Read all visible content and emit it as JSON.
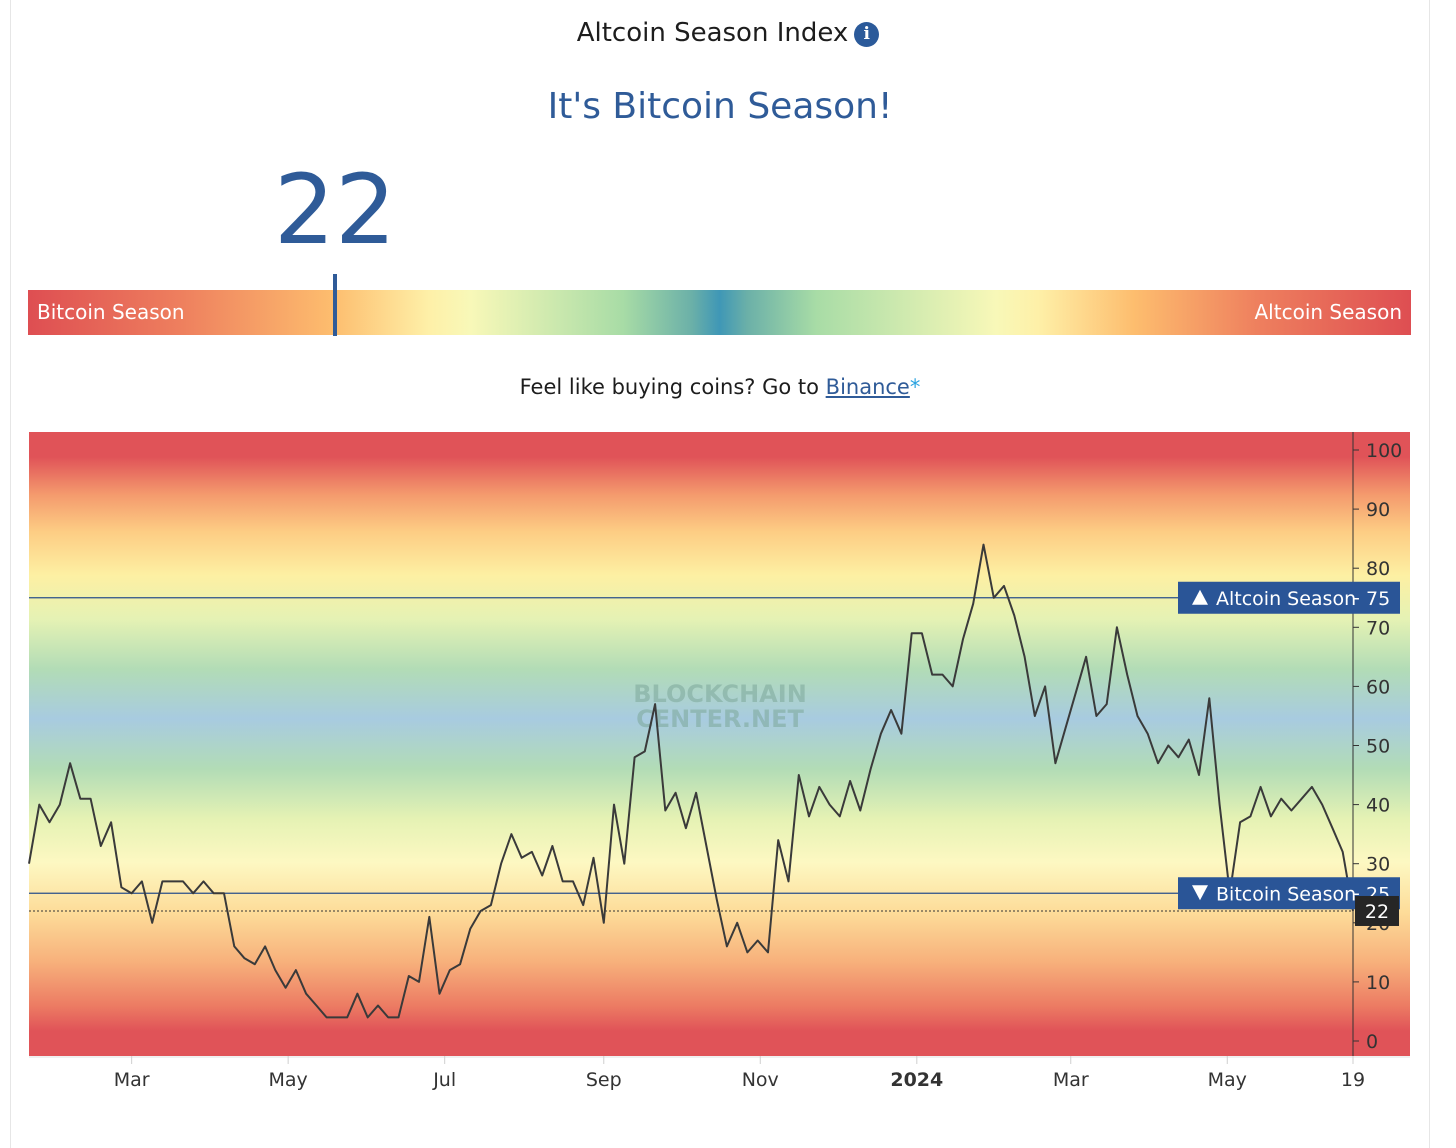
{
  "header": {
    "title": "Altcoin Season Index",
    "info_icon": "info-icon",
    "season_heading": "It's Bitcoin Season!"
  },
  "gauge": {
    "value": "22",
    "value_num": 22,
    "left_label": "Bitcoin Season",
    "right_label": "Altcoin Season"
  },
  "promo": {
    "prefix": "Feel like buying coins? Go to ",
    "link": "Binance",
    "asterisk": "*"
  },
  "chart_data": {
    "type": "line",
    "ylim": [
      0,
      100
    ],
    "y_ticks": [
      "0",
      "10",
      "20",
      "30",
      "40",
      "50",
      "60",
      "70",
      "80",
      "90",
      "100"
    ],
    "x_range": [
      "2023-01-20",
      "2024-06-19"
    ],
    "x_ticks": [
      {
        "label": "Mar",
        "date": "2023-03-01",
        "bold": false
      },
      {
        "label": "May",
        "date": "2023-05-01",
        "bold": false
      },
      {
        "label": "Jul",
        "date": "2023-07-01",
        "bold": false
      },
      {
        "label": "Sep",
        "date": "2023-09-01",
        "bold": false
      },
      {
        "label": "Nov",
        "date": "2023-11-01",
        "bold": false
      },
      {
        "label": "2024",
        "date": "2024-01-01",
        "bold": true
      },
      {
        "label": "Mar",
        "date": "2024-03-01",
        "bold": false
      },
      {
        "label": "May",
        "date": "2024-05-01",
        "bold": false
      },
      {
        "label": "19",
        "date": "2024-06-19",
        "bold": false
      }
    ],
    "thresholds": [
      {
        "label": "Altcoin Season",
        "value": "75",
        "value_num": 75,
        "direction": "up"
      },
      {
        "label": "Bitcoin Season",
        "value": "25",
        "value_num": 25,
        "direction": "down"
      }
    ],
    "current": {
      "value": "22",
      "value_num": 22
    },
    "watermark": [
      "BLOCKCHAIN",
      "CENTER.NET"
    ],
    "series": [
      {
        "x": [
          "2023-01-20",
          "2023-01-24",
          "2023-01-28",
          "2023-02-01",
          "2023-02-05",
          "2023-02-09",
          "2023-02-13",
          "2023-02-17",
          "2023-02-21",
          "2023-02-25",
          "2023-03-01",
          "2023-03-05",
          "2023-03-09",
          "2023-03-13",
          "2023-03-17",
          "2023-03-21",
          "2023-03-25",
          "2023-03-29",
          "2023-04-02",
          "2023-04-06",
          "2023-04-10",
          "2023-04-14",
          "2023-04-18",
          "2023-04-22",
          "2023-04-26",
          "2023-04-30",
          "2023-05-04",
          "2023-05-08",
          "2023-05-12",
          "2023-05-16",
          "2023-05-20",
          "2023-05-24",
          "2023-05-28",
          "2023-06-01",
          "2023-06-05",
          "2023-06-09",
          "2023-06-13",
          "2023-06-17",
          "2023-06-21",
          "2023-06-25",
          "2023-06-29",
          "2023-07-03",
          "2023-07-07",
          "2023-07-11",
          "2023-07-15",
          "2023-07-19",
          "2023-07-23",
          "2023-07-27",
          "2023-07-31",
          "2023-08-04",
          "2023-08-08",
          "2023-08-12",
          "2023-08-16",
          "2023-08-20",
          "2023-08-24",
          "2023-08-28",
          "2023-09-01",
          "2023-09-05",
          "2023-09-09",
          "2023-09-13",
          "2023-09-17",
          "2023-09-21",
          "2023-09-25",
          "2023-09-29",
          "2023-10-03",
          "2023-10-07",
          "2023-10-11",
          "2023-10-15",
          "2023-10-19",
          "2023-10-23",
          "2023-10-27",
          "2023-10-31",
          "2023-11-04",
          "2023-11-08",
          "2023-11-12",
          "2023-11-16",
          "2023-11-20",
          "2023-11-24",
          "2023-11-28",
          "2023-12-02",
          "2023-12-06",
          "2023-12-10",
          "2023-12-14",
          "2023-12-18",
          "2023-12-22",
          "2023-12-26",
          "2023-12-30",
          "2024-01-03",
          "2024-01-07",
          "2024-01-11",
          "2024-01-15",
          "2024-01-19",
          "2024-01-23",
          "2024-01-27",
          "2024-01-31",
          "2024-02-04",
          "2024-02-08",
          "2024-02-12",
          "2024-02-16",
          "2024-02-20",
          "2024-02-24",
          "2024-02-28",
          "2024-03-03",
          "2024-03-07",
          "2024-03-11",
          "2024-03-15",
          "2024-03-19",
          "2024-03-23",
          "2024-03-27",
          "2024-03-31",
          "2024-04-04",
          "2024-04-08",
          "2024-04-12",
          "2024-04-16",
          "2024-04-20",
          "2024-04-24",
          "2024-04-28",
          "2024-05-02",
          "2024-05-06",
          "2024-05-10",
          "2024-05-14",
          "2024-05-18",
          "2024-05-22",
          "2024-05-26",
          "2024-05-30",
          "2024-06-03",
          "2024-06-07",
          "2024-06-11",
          "2024-06-15",
          "2024-06-19"
        ],
        "y": [
          30,
          40,
          37,
          40,
          47,
          41,
          41,
          33,
          37,
          26,
          25,
          27,
          20,
          27,
          27,
          27,
          25,
          27,
          25,
          25,
          16,
          14,
          13,
          16,
          12,
          9,
          12,
          8,
          6,
          4,
          4,
          4,
          8,
          4,
          6,
          4,
          4,
          11,
          10,
          21,
          8,
          12,
          13,
          19,
          22,
          23,
          30,
          35,
          31,
          32,
          28,
          33,
          27,
          27,
          23,
          31,
          20,
          40,
          30,
          48,
          49,
          57,
          39,
          42,
          36,
          42,
          33,
          24,
          16,
          20,
          15,
          17,
          15,
          34,
          27,
          45,
          38,
          43,
          40,
          38,
          44,
          39,
          46,
          52,
          56,
          52,
          69,
          69,
          62,
          62,
          60,
          68,
          74,
          84,
          75,
          77,
          72,
          65,
          55,
          60,
          47,
          53,
          59,
          65,
          55,
          57,
          70,
          62,
          55,
          52,
          47,
          50,
          48,
          51,
          45,
          58,
          40,
          25,
          37,
          38,
          43,
          38,
          41,
          39,
          41,
          43,
          40,
          36,
          32,
          22
        ]
      }
    ]
  }
}
